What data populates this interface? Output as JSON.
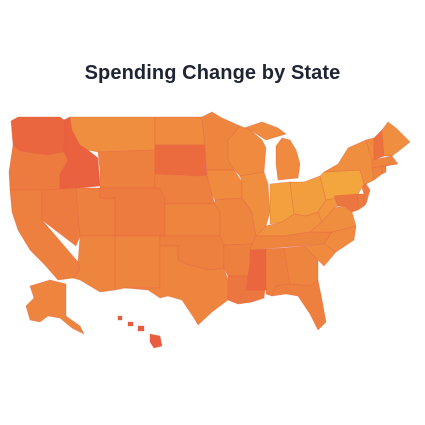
{
  "title": "Spending Change by State",
  "colors": {
    "background": "#ffffff",
    "title": "#1f2433",
    "scale_high": "#f5b13e",
    "scale_mid": "#ef8a3f",
    "scale_low": "#e8573f",
    "border": "#e0603f"
  },
  "map": {
    "type": "choropleth",
    "region": "United States",
    "legend": "none",
    "states": [
      {
        "id": "WA",
        "level": 0.15
      },
      {
        "id": "OR",
        "level": 0.35
      },
      {
        "id": "CA",
        "level": 0.4
      },
      {
        "id": "ID",
        "level": 0.1
      },
      {
        "id": "NV",
        "level": 0.35
      },
      {
        "id": "MT",
        "level": 0.55
      },
      {
        "id": "WY",
        "level": 0.4
      },
      {
        "id": "UT",
        "level": 0.4
      },
      {
        "id": "AZ",
        "level": 0.45
      },
      {
        "id": "CO",
        "level": 0.35
      },
      {
        "id": "NM",
        "level": 0.45
      },
      {
        "id": "ND",
        "level": 0.5
      },
      {
        "id": "SD",
        "level": 0.2
      },
      {
        "id": "NE",
        "level": 0.4
      },
      {
        "id": "KS",
        "level": 0.45
      },
      {
        "id": "OK",
        "level": 0.4
      },
      {
        "id": "TX",
        "level": 0.45
      },
      {
        "id": "MN",
        "level": 0.45
      },
      {
        "id": "IA",
        "level": 0.5
      },
      {
        "id": "MO",
        "level": 0.45
      },
      {
        "id": "AR",
        "level": 0.4
      },
      {
        "id": "LA",
        "level": 0.3
      },
      {
        "id": "WI",
        "level": 0.5
      },
      {
        "id": "IL",
        "level": 0.55
      },
      {
        "id": "MI",
        "level": 0.5
      },
      {
        "id": "IN",
        "level": 0.8
      },
      {
        "id": "OH",
        "level": 0.75
      },
      {
        "id": "KY",
        "level": 0.6
      },
      {
        "id": "TN",
        "level": 0.45
      },
      {
        "id": "MS",
        "level": 0.15
      },
      {
        "id": "AL",
        "level": 0.4
      },
      {
        "id": "GA",
        "level": 0.45
      },
      {
        "id": "FL",
        "level": 0.4
      },
      {
        "id": "SC",
        "level": 0.5
      },
      {
        "id": "NC",
        "level": 0.5
      },
      {
        "id": "VA",
        "level": 0.55
      },
      {
        "id": "WV",
        "level": 0.65
      },
      {
        "id": "PA",
        "level": 0.85
      },
      {
        "id": "NY",
        "level": 0.55
      },
      {
        "id": "MD",
        "level": 0.3
      },
      {
        "id": "DE",
        "level": 0.35
      },
      {
        "id": "NJ",
        "level": 0.35
      },
      {
        "id": "CT",
        "level": 0.45
      },
      {
        "id": "RI",
        "level": 0.45
      },
      {
        "id": "MA",
        "level": 0.45
      },
      {
        "id": "VT",
        "level": 0.5
      },
      {
        "id": "NH",
        "level": 0.25
      },
      {
        "id": "ME",
        "level": 0.55
      },
      {
        "id": "AK",
        "level": 0.45
      },
      {
        "id": "HI",
        "level": 0.05
      }
    ]
  }
}
